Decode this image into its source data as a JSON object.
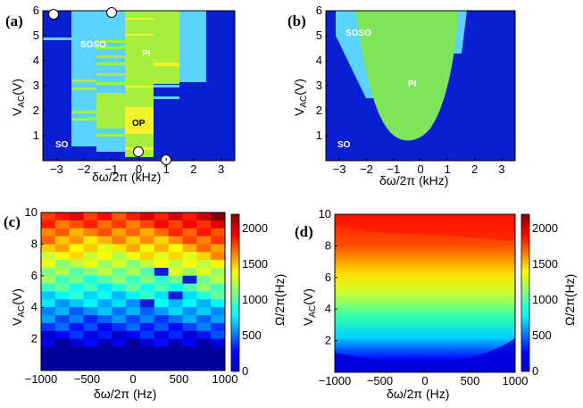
{
  "chart_data": [
    {
      "panel": "(a)",
      "type": "heatmap",
      "xlabel": "δω/2π (kHz)",
      "ylabel": "V_AC(V)",
      "xlim": [
        -3.5,
        3.5
      ],
      "ylim": [
        0,
        6
      ],
      "xticks": [
        "−3",
        "−2",
        "−1",
        "0",
        "1",
        "2",
        "3"
      ],
      "yticks": [
        "1",
        "2",
        "3",
        "4",
        "5",
        "6"
      ],
      "regions": [
        "SO",
        "SOSO",
        "PI",
        "OP"
      ],
      "markers": [
        [
          -3.1,
          6.0
        ],
        [
          -1.0,
          6.0
        ],
        [
          0.0,
          0.35
        ],
        [
          1.0,
          0.0
        ]
      ],
      "colors": {
        "SO": "#0a1ed2",
        "SOSO": "#5cd3ff",
        "PI": "#a6ee3c",
        "OP": "#f3f22d"
      }
    },
    {
      "panel": "(b)",
      "type": "heatmap",
      "xlabel": "δω/2π (kHz)",
      "ylabel": "V_AC(V)",
      "xlim": [
        -3.5,
        3.5
      ],
      "ylim": [
        0,
        6
      ],
      "xticks": [
        "−3",
        "−2",
        "−1",
        "0",
        "1",
        "2",
        "3"
      ],
      "yticks": [
        "1",
        "2",
        "3",
        "4",
        "5",
        "6"
      ],
      "regions": [
        "SO",
        "SOSO",
        "PI"
      ],
      "colors": {
        "SO": "#0a1ed2",
        "SOSO": "#5cd3ff",
        "PI": "#7ee65a"
      }
    },
    {
      "panel": "(c)",
      "type": "heatmap",
      "xlabel": "δω/2π (Hz)",
      "ylabel": "V_AC(V)",
      "xlim": [
        -1000,
        1000
      ],
      "ylim": [
        0,
        10
      ],
      "xticks": [
        "−1000",
        "−500",
        "0",
        "500",
        "1000"
      ],
      "yticks": [
        "2",
        "4",
        "6",
        "8",
        "10"
      ],
      "colorbar": {
        "label": "Ω/2π(Hz)",
        "ticks": [
          "0",
          "500",
          "1000",
          "1500",
          "2000"
        ],
        "range": [
          0,
          2200
        ]
      }
    },
    {
      "panel": "(d)",
      "type": "heatmap",
      "xlabel": "δω/2π (Hz)",
      "ylabel": "V_AC(V)",
      "xlim": [
        -1000,
        1000
      ],
      "ylim": [
        0,
        10
      ],
      "xticks": [
        "−1000",
        "−500",
        "0",
        "500",
        "1000"
      ],
      "yticks": [
        "2",
        "4",
        "6",
        "8",
        "10"
      ],
      "colorbar": {
        "label": "Ω/2π(Hz)",
        "ticks": [
          "0",
          "500",
          "1000",
          "1500",
          "2000"
        ],
        "range": [
          0,
          2200
        ]
      }
    }
  ]
}
